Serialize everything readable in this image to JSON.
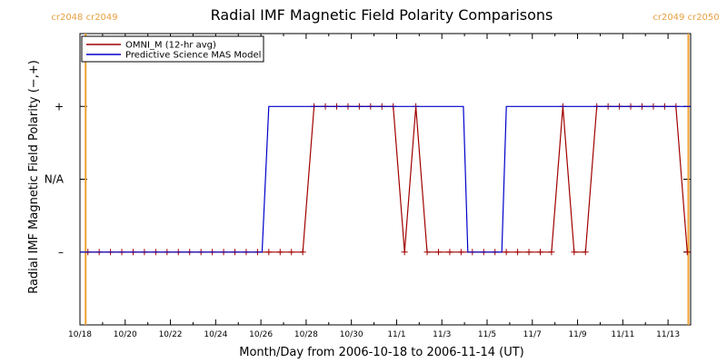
{
  "chart_data": {
    "type": "line",
    "title": "Radial IMF Magnetic Field Polarity Comparisons",
    "xlabel": "Month/Day from 2006-10-18 to 2006-11-14 (UT)",
    "ylabel": "Radial IMF Magnetic Field Polarity (−,+)",
    "x_range_days": [
      0,
      27
    ],
    "ylim": [
      -2,
      2
    ],
    "y_ticks": [
      {
        "value": 1,
        "label": "+"
      },
      {
        "value": 0,
        "label": "N/A"
      },
      {
        "value": -1,
        "label": "–"
      }
    ],
    "x_ticks": [
      {
        "day": 0,
        "label": "10/18"
      },
      {
        "day": 2,
        "label": "10/20"
      },
      {
        "day": 4,
        "label": "10/22"
      },
      {
        "day": 6,
        "label": "10/24"
      },
      {
        "day": 8,
        "label": "10/26"
      },
      {
        "day": 10,
        "label": "10/28"
      },
      {
        "day": 12,
        "label": "10/30"
      },
      {
        "day": 14,
        "label": "11/1"
      },
      {
        "day": 16,
        "label": "11/3"
      },
      {
        "day": 18,
        "label": "11/5"
      },
      {
        "day": 20,
        "label": "11/7"
      },
      {
        "day": 22,
        "label": "11/9"
      },
      {
        "day": 24,
        "label": "11/11"
      },
      {
        "day": 26,
        "label": "11/13"
      }
    ],
    "carrington_markers": [
      {
        "day": 0.25,
        "label": "cr2048 cr2049",
        "side": "left"
      },
      {
        "day": 26.9,
        "label": "cr2049 cr2050",
        "side": "right"
      }
    ],
    "legend_position": "top-left",
    "series": [
      {
        "name": "OMNI_M (12-hr avg)",
        "color": "#a00000",
        "markers": "plus",
        "x": [
          0.35,
          0.85,
          1.35,
          1.85,
          2.35,
          2.85,
          3.35,
          3.85,
          4.35,
          4.85,
          5.35,
          5.85,
          6.35,
          6.85,
          7.35,
          7.85,
          8.35,
          8.85,
          9.35,
          9.85,
          10.35,
          10.85,
          11.35,
          11.85,
          12.35,
          12.85,
          13.35,
          13.85,
          14.35,
          14.85,
          15.35,
          15.85,
          16.35,
          16.85,
          17.35,
          17.85,
          18.35,
          18.85,
          19.35,
          19.85,
          20.35,
          20.85,
          21.35,
          21.85,
          22.35,
          22.85,
          23.35,
          23.85,
          24.35,
          24.85,
          25.35,
          25.85,
          26.35,
          26.85
        ],
        "y": [
          -1,
          -1,
          -1,
          -1,
          -1,
          -1,
          -1,
          -1,
          -1,
          -1,
          -1,
          -1,
          -1,
          -1,
          -1,
          -1,
          -1,
          -1,
          -1,
          -1,
          1,
          1,
          1,
          1,
          1,
          1,
          1,
          1,
          -1,
          1,
          -1,
          -1,
          -1,
          -1,
          -1,
          -1,
          -1,
          -1,
          -1,
          -1,
          -1,
          -1,
          1,
          -1,
          -1,
          1,
          1,
          1,
          1,
          1,
          1,
          1,
          1,
          -1
        ]
      },
      {
        "name": "Predictive Science MAS Model",
        "color": "#0000cc",
        "markers": "none",
        "x": [
          0,
          8.05,
          8.35,
          16.95,
          17.15,
          18.65,
          18.85,
          27
        ],
        "y": [
          -1,
          -1,
          1,
          1,
          -1,
          -1,
          1,
          1
        ]
      }
    ]
  }
}
